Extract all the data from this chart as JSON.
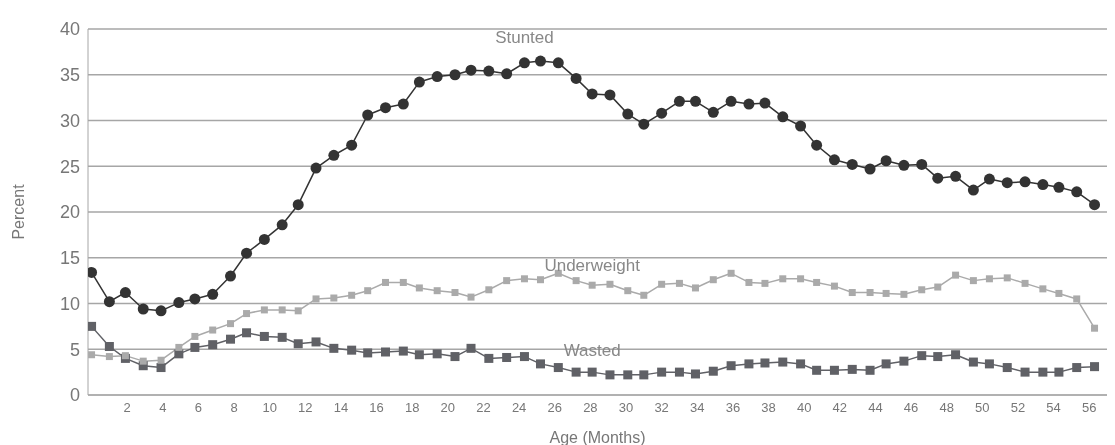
{
  "chart_data": {
    "type": "line",
    "xlabel": "Age (Months)",
    "ylabel": "Percent",
    "x": [
      0,
      1,
      1.9,
      2.9,
      3.9,
      4.9,
      5.8,
      6.8,
      7.8,
      8.7,
      9.7,
      10.7,
      11.6,
      12.6,
      13.6,
      14.6,
      15.5,
      16.5,
      17.5,
      18.4,
      19.4,
      20.4,
      21.3,
      22.3,
      23.3,
      24.3,
      25.2,
      26.2,
      27.2,
      28.1,
      29.1,
      30.1,
      31,
      32,
      33,
      33.9,
      34.9,
      35.9,
      36.9,
      37.8,
      38.8,
      39.8,
      40.7,
      41.7,
      42.7,
      43.7,
      44.6,
      45.6,
      46.6,
      47.5,
      48.5,
      49.5,
      50.4,
      51.4,
      52.4,
      53.4,
      54.3,
      55.3,
      56.3
    ],
    "series": [
      {
        "name": "Stunted",
        "color": "#333333",
        "marker": "circle",
        "values": [
          13.4,
          10.2,
          11.2,
          9.4,
          9.2,
          10.1,
          10.5,
          11.0,
          13.0,
          15.5,
          17.0,
          18.6,
          20.8,
          24.8,
          26.2,
          27.3,
          30.6,
          31.4,
          31.8,
          34.2,
          34.8,
          35.0,
          35.5,
          35.4,
          35.1,
          36.3,
          36.5,
          36.3,
          34.6,
          32.9,
          32.8,
          30.7,
          29.6,
          30.8,
          32.1,
          32.1,
          30.9,
          32.1,
          31.8,
          31.9,
          30.4,
          29.4,
          27.3,
          25.7,
          25.2,
          24.7,
          25.6,
          25.1,
          25.2,
          23.7,
          23.9,
          22.4,
          23.6,
          23.2,
          23.3,
          23.0,
          22.7,
          22.2,
          20.8
        ]
      },
      {
        "name": "Underweight",
        "color": "#aaaaaa",
        "marker": "square",
        "values": [
          4.4,
          4.2,
          4.3,
          3.7,
          3.8,
          5.2,
          6.4,
          7.1,
          7.8,
          8.9,
          9.3,
          9.3,
          9.2,
          10.5,
          10.6,
          10.9,
          11.4,
          12.3,
          12.3,
          11.7,
          11.4,
          11.2,
          10.7,
          11.5,
          12.5,
          12.7,
          12.6,
          13.3,
          12.5,
          12.0,
          12.1,
          11.4,
          10.9,
          12.1,
          12.2,
          11.7,
          12.6,
          13.3,
          12.3,
          12.2,
          12.7,
          12.7,
          12.3,
          11.9,
          11.2,
          11.2,
          11.1,
          11.0,
          11.5,
          11.8,
          13.1,
          12.5,
          12.7,
          12.8,
          12.2,
          11.6,
          11.1,
          10.5,
          7.3
        ]
      },
      {
        "name": "Wasted",
        "color": "#606166",
        "marker": "square",
        "values": [
          7.5,
          5.3,
          4.0,
          3.2,
          3.0,
          4.5,
          5.2,
          5.5,
          6.1,
          6.8,
          6.4,
          6.3,
          5.6,
          5.8,
          5.1,
          4.9,
          4.6,
          4.7,
          4.8,
          4.4,
          4.5,
          4.2,
          5.1,
          4.0,
          4.1,
          4.2,
          3.4,
          3.0,
          2.5,
          2.5,
          2.2,
          2.2,
          2.2,
          2.5,
          2.5,
          2.3,
          2.6,
          3.2,
          3.4,
          3.5,
          3.6,
          3.4,
          2.7,
          2.7,
          2.8,
          2.7,
          3.4,
          3.7,
          4.3,
          4.2,
          4.4,
          3.6,
          3.4,
          3.0,
          2.5,
          2.5,
          2.5,
          3.0,
          3.1
        ]
      }
    ],
    "xlim": [
      -0.2,
      57
    ],
    "xticks": [
      2,
      4,
      6,
      8,
      10,
      12,
      14,
      16,
      18,
      20,
      22,
      24,
      26,
      28,
      30,
      32,
      34,
      36,
      38,
      40,
      42,
      44,
      46,
      48,
      50,
      52,
      54,
      56
    ],
    "ylim": [
      0,
      40
    ],
    "yticks": [
      0,
      5,
      10,
      15,
      20,
      25,
      30,
      35,
      40
    ],
    "grid": "y"
  }
}
